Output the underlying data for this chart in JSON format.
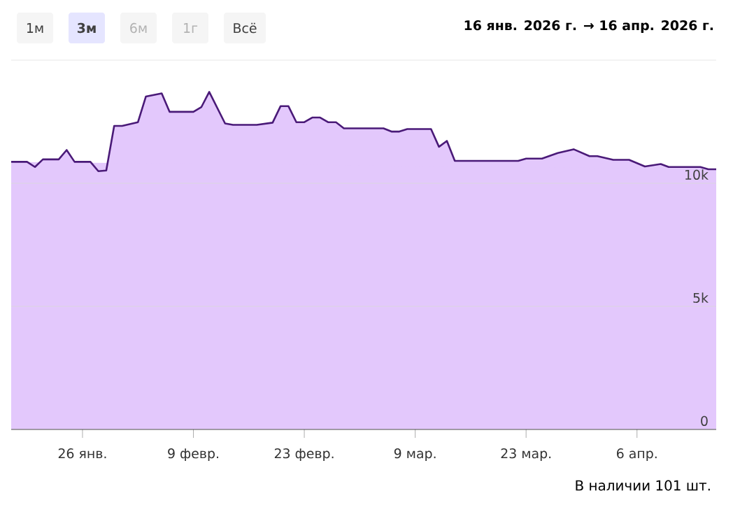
{
  "chart_data": {
    "type": "area",
    "subtitle": "16 янв. 2026 г. → 16 апр. 2026 г.",
    "annotations": [
      "1м",
      "3м",
      "6м",
      "1г",
      "Всё",
      "В наличии 101 шт."
    ],
    "x": [
      "2026-01-17",
      "2026-01-19",
      "2026-01-20",
      "2026-01-21",
      "2026-01-23",
      "2026-01-24",
      "2026-01-25",
      "2026-01-27",
      "2026-01-28",
      "2026-01-29",
      "2026-01-30",
      "2026-01-31",
      "2026-02-02",
      "2026-02-03",
      "2026-02-05",
      "2026-02-06",
      "2026-02-09",
      "2026-02-10",
      "2026-02-11",
      "2026-02-13",
      "2026-02-14",
      "2026-02-17",
      "2026-02-19",
      "2026-02-20",
      "2026-02-21",
      "2026-02-22",
      "2026-02-23",
      "2026-02-24",
      "2026-02-25",
      "2026-02-26",
      "2026-02-27",
      "2026-02-28",
      "2026-03-05",
      "2026-03-06",
      "2026-03-07",
      "2026-03-08",
      "2026-03-11",
      "2026-03-12",
      "2026-03-13",
      "2026-03-14",
      "2026-03-22",
      "2026-03-23",
      "2026-03-25",
      "2026-03-27",
      "2026-03-29",
      "2026-03-31",
      "2026-04-01",
      "2026-04-03",
      "2026-04-05",
      "2026-04-07",
      "2026-04-09",
      "2026-04-10",
      "2026-04-14",
      "2026-04-15",
      "2026-04-16"
    ],
    "values": [
      10870,
      10870,
      10660,
      10970,
      10970,
      11350,
      10870,
      10870,
      10490,
      10520,
      12330,
      12330,
      12480,
      13520,
      13650,
      12900,
      12900,
      13090,
      13710,
      12430,
      12370,
      12370,
      12460,
      13130,
      13130,
      12480,
      12480,
      12670,
      12670,
      12480,
      12480,
      12230,
      12230,
      12100,
      12100,
      12200,
      12200,
      11480,
      11720,
      10910,
      10910,
      11000,
      11000,
      11230,
      11380,
      11100,
      11100,
      10950,
      10950,
      10680,
      10780,
      10660,
      10660,
      10570,
      10570
    ],
    "color": "#4a1a78",
    "xlim": [
      "2026-01-17",
      "2026-04-16"
    ],
    "xticks": [
      {
        "value": "2026-01-26",
        "label": "26 янв."
      },
      {
        "value": "2026-02-09",
        "label": "9 февр."
      },
      {
        "value": "2026-02-23",
        "label": "23 февр."
      },
      {
        "value": "2026-03-09",
        "label": "9 мар."
      },
      {
        "value": "2026-03-23",
        "label": "23 мар."
      },
      {
        "value": "2026-04-06",
        "label": "6 апр."
      }
    ],
    "ylim": [
      0,
      15000
    ],
    "yticks": [
      0,
      {
        "value": 5000,
        "label": "5k"
      },
      {
        "value": 10000,
        "label": "10k"
      }
    ],
    "grid": "y",
    "marker": "none",
    "line_style": "solid"
  }
}
